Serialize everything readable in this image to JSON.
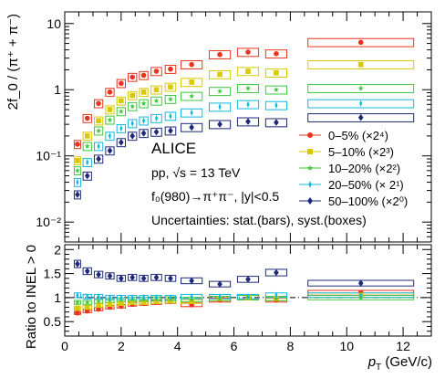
{
  "chart_data": [
    {
      "type": "scatter",
      "panel": "top",
      "ylabel": "2f_0 / (π⁺ + π⁻)",
      "xlim": [
        0,
        13
      ],
      "ylim": [
        0.005,
        15
      ],
      "yscale": "log",
      "y_tick_values": [
        0.01,
        0.1,
        1,
        10
      ],
      "y_tick_labels": [
        "10⁻²",
        "10⁻¹",
        "1",
        "10"
      ],
      "x_edges": [
        0.3,
        0.6,
        1.0,
        1.4,
        1.8,
        2.2,
        2.6,
        3.0,
        3.5,
        4.0,
        5.0,
        6.0,
        7.0,
        8.0,
        13.0
      ],
      "x": [
        0.45,
        0.8,
        1.2,
        1.6,
        2.0,
        2.4,
        2.8,
        3.25,
        3.75,
        4.5,
        5.5,
        6.5,
        7.5,
        10.5
      ],
      "annotations": {
        "experiment": "ALICE",
        "system": "pp,   √s = 13 TeV",
        "decay": "f₀(980)→π⁺π⁻, |y|<0.5",
        "uncertainties": "Uncertainties: stat.(bars), syst.(boxes)"
      },
      "legend_position": "right-middle",
      "series": [
        {
          "name": "0–5% (×2⁴)",
          "color": "#e8341c",
          "marker": "circle",
          "values": [
            0.15,
            0.37,
            0.62,
            0.92,
            1.25,
            1.55,
            1.65,
            1.9,
            2.05,
            2.4,
            3.4,
            3.7,
            3.5,
            5.2
          ]
        },
        {
          "name": "5–10% (×2³)",
          "color": "#d8c800",
          "marker": "square",
          "values": [
            0.085,
            0.2,
            0.34,
            0.5,
            0.68,
            0.82,
            0.92,
            1.0,
            1.1,
            1.3,
            1.7,
            1.9,
            1.8,
            2.4
          ]
        },
        {
          "name": "10–20% (×2²)",
          "color": "#3cc83c",
          "marker": "star",
          "values": [
            0.06,
            0.14,
            0.24,
            0.35,
            0.47,
            0.56,
            0.62,
            0.68,
            0.72,
            0.8,
            0.95,
            1.05,
            1.0,
            1.05
          ]
        },
        {
          "name": "20–50% (× 2¹)",
          "color": "#10b8e0",
          "marker": "thin-diamond",
          "values": [
            0.04,
            0.08,
            0.14,
            0.2,
            0.26,
            0.31,
            0.34,
            0.37,
            0.4,
            0.45,
            0.55,
            0.6,
            0.58,
            0.62
          ]
        },
        {
          "name": "50–100% (×2⁰)",
          "color": "#1e2a78",
          "marker": "diamond",
          "values": [
            0.026,
            0.05,
            0.09,
            0.12,
            0.16,
            0.2,
            0.22,
            0.23,
            0.24,
            0.27,
            0.3,
            0.33,
            0.32,
            0.38
          ]
        }
      ]
    },
    {
      "type": "scatter",
      "panel": "bottom",
      "xlabel": "p_T (GeV/c)",
      "ylabel": "Ratio to INEL > 0",
      "xlim": [
        0,
        13
      ],
      "ylim": [
        0.2,
        2.1
      ],
      "x_tick_values": [
        0,
        2,
        4,
        6,
        8,
        10,
        12
      ],
      "y_tick_values": [
        0.5,
        1,
        1.5,
        2
      ],
      "y_tick_labels": [
        "0.5",
        "1",
        "1.5",
        "2"
      ],
      "reference_line": 1,
      "x_edges": [
        0.3,
        0.6,
        1.0,
        1.4,
        1.8,
        2.2,
        2.6,
        3.0,
        3.5,
        4.0,
        5.0,
        6.0,
        7.0,
        8.0,
        13.0
      ],
      "x": [
        0.45,
        0.8,
        1.2,
        1.6,
        2.0,
        2.4,
        2.8,
        3.25,
        3.75,
        4.5,
        5.5,
        6.5,
        7.5,
        10.5
      ],
      "series": [
        {
          "name": "0–5% (×2⁴)",
          "color": "#e8341c",
          "marker": "circle",
          "values": [
            0.68,
            0.72,
            0.76,
            0.8,
            0.82,
            0.86,
            0.88,
            0.9,
            0.92,
            0.85,
            0.95,
            1.0,
            0.95,
            1.1
          ]
        },
        {
          "name": "5–10% (×2³)",
          "color": "#d8c800",
          "marker": "square",
          "values": [
            0.78,
            0.8,
            0.84,
            0.86,
            0.88,
            0.9,
            0.9,
            0.92,
            0.93,
            0.92,
            0.98,
            1.0,
            0.98,
            1.05
          ]
        },
        {
          "name": "10–20% (×2²)",
          "color": "#3cc83c",
          "marker": "star",
          "values": [
            0.9,
            0.9,
            0.92,
            0.94,
            0.95,
            0.96,
            0.96,
            0.97,
            0.97,
            0.96,
            0.98,
            1.0,
            0.98,
            1.0
          ]
        },
        {
          "name": "20–50% (× 2¹)",
          "color": "#10b8e0",
          "marker": "thin-diamond",
          "values": [
            1.05,
            1.02,
            1.02,
            1.0,
            1.0,
            1.0,
            1.0,
            1.0,
            1.0,
            1.02,
            1.02,
            1.02,
            1.05,
            1.05
          ]
        },
        {
          "name": "50–100% (×2⁰)",
          "color": "#1e2a78",
          "marker": "diamond",
          "values": [
            1.7,
            1.55,
            1.48,
            1.45,
            1.4,
            1.42,
            1.4,
            1.42,
            1.4,
            1.35,
            1.28,
            1.38,
            1.52,
            1.3
          ]
        }
      ]
    }
  ]
}
